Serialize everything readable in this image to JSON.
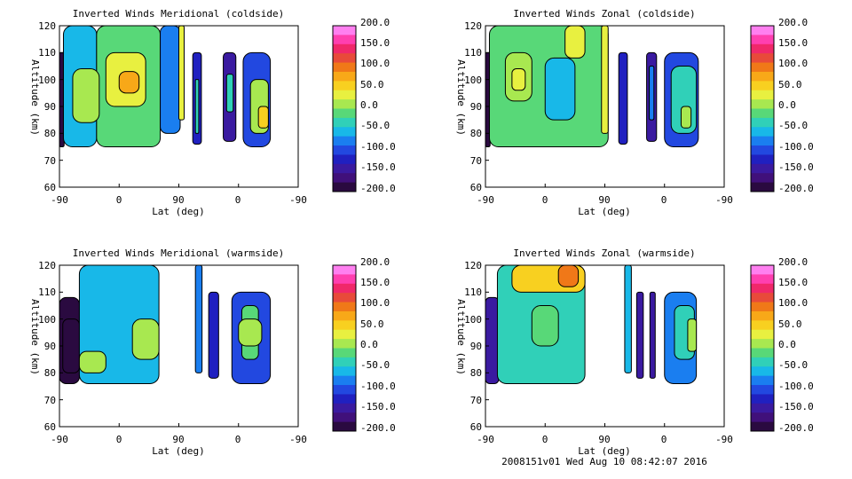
{
  "footer": "2008151v01 Wed Aug 10 08:42:07 2016",
  "colorbar": {
    "ticks": [
      "200.0",
      "150.0",
      "100.0",
      "50.0",
      "0.0",
      "-50.0",
      "-100.0",
      "-150.0",
      "-200.0"
    ],
    "colors_top_to_bottom": [
      "#ff7ff0",
      "#ff3fb0",
      "#f0286a",
      "#e84a3a",
      "#f07818",
      "#f8a818",
      "#f8d020",
      "#e8f040",
      "#a8e850",
      "#58d878",
      "#30d0b8",
      "#18b8e8",
      "#1a7ef0",
      "#2248e0",
      "#2020c0",
      "#3a1aa0",
      "#40107a",
      "#2a0a40"
    ]
  },
  "chart_data": [
    {
      "type": "heatmap",
      "title": "Inverted Winds Meridional (coldside)",
      "xlabel": "Lat (deg)",
      "ylabel": "Altitude (km)",
      "xticks": [
        "-90",
        "0",
        "90",
        "0",
        "-90"
      ],
      "yticks": [
        "60",
        "70",
        "80",
        "90",
        "100",
        "110",
        "120"
      ],
      "ylim": [
        60,
        120
      ],
      "zlim": [
        -200,
        200
      ],
      "regions": [
        {
          "x": [
            -92,
            -83
          ],
          "y": [
            75,
            110
          ],
          "v": -200
        },
        {
          "x": [
            -84,
            -34
          ],
          "y": [
            75,
            120
          ],
          "v": -60
        },
        {
          "x": [
            -34,
            62
          ],
          "y": [
            75,
            120
          ],
          "v": -10
        },
        {
          "x": [
            -70,
            -30
          ],
          "y": [
            84,
            104
          ],
          "v": 20
        },
        {
          "x": [
            -20,
            40
          ],
          "y": [
            90,
            110
          ],
          "v": 40
        },
        {
          "x": [
            0,
            30
          ],
          "y": [
            95,
            103
          ],
          "v": 70
        },
        {
          "x": [
            62,
            92
          ],
          "y": [
            80,
            120
          ],
          "v": -70
        },
        {
          "x": [
            90,
            98
          ],
          "y": [
            85,
            120
          ],
          "v": 40
        },
        {
          "x": [
            111,
            124
          ],
          "y": [
            76,
            110
          ],
          "v": -120
        },
        {
          "x": [
            115,
            120
          ],
          "y": [
            80,
            100
          ],
          "v": -40
        },
        {
          "x": [
            157,
            176
          ],
          "y": [
            77,
            110
          ],
          "v": -140
        },
        {
          "x": [
            162,
            172
          ],
          "y": [
            88,
            102
          ],
          "v": -40
        },
        {
          "x": [
            187,
            228
          ],
          "y": [
            75,
            110
          ],
          "v": -90
        },
        {
          "x": [
            198,
            225
          ],
          "y": [
            80,
            100
          ],
          "v": 20
        },
        {
          "x": [
            210,
            225
          ],
          "y": [
            82,
            90
          ],
          "v": 50
        }
      ]
    },
    {
      "type": "heatmap",
      "title": "Inverted Winds Zonal (coldside)",
      "xlabel": "Lat (deg)",
      "ylabel": "Altitude (km)",
      "xticks": [
        "-90",
        "0",
        "90",
        "0",
        "-90"
      ],
      "yticks": [
        "60",
        "70",
        "80",
        "90",
        "100",
        "110",
        "120"
      ],
      "ylim": [
        60,
        120
      ],
      "zlim": [
        -200,
        200
      ],
      "regions": [
        {
          "x": [
            -92,
            -83
          ],
          "y": [
            75,
            110
          ],
          "v": -180
        },
        {
          "x": [
            -84,
            95
          ],
          "y": [
            75,
            120
          ],
          "v": -20
        },
        {
          "x": [
            -60,
            -20
          ],
          "y": [
            92,
            110
          ],
          "v": 10
        },
        {
          "x": [
            -50,
            -30
          ],
          "y": [
            96,
            104
          ],
          "v": 30
        },
        {
          "x": [
            0,
            45
          ],
          "y": [
            85,
            108
          ],
          "v": -50
        },
        {
          "x": [
            30,
            60
          ],
          "y": [
            108,
            120
          ],
          "v": 30
        },
        {
          "x": [
            85,
            95
          ],
          "y": [
            80,
            120
          ],
          "v": 40
        },
        {
          "x": [
            111,
            124
          ],
          "y": [
            76,
            110
          ],
          "v": -120
        },
        {
          "x": [
            153,
            168
          ],
          "y": [
            77,
            110
          ],
          "v": -150
        },
        {
          "x": [
            157,
            164
          ],
          "y": [
            85,
            105
          ],
          "v": -80
        },
        {
          "x": [
            180,
            231
          ],
          "y": [
            75,
            110
          ],
          "v": -90
        },
        {
          "x": [
            190,
            228
          ],
          "y": [
            80,
            105
          ],
          "v": -40
        },
        {
          "x": [
            205,
            220
          ],
          "y": [
            82,
            90
          ],
          "v": 20
        }
      ]
    },
    {
      "type": "heatmap",
      "title": "Inverted Winds Meridional (warmside)",
      "xlabel": "Lat (deg)",
      "ylabel": "Altitude (km)",
      "xticks": [
        "-90",
        "0",
        "90",
        "0",
        "-90"
      ],
      "yticks": [
        "60",
        "70",
        "80",
        "90",
        "100",
        "110",
        "120"
      ],
      "ylim": [
        60,
        120
      ],
      "zlim": [
        -200,
        200
      ],
      "regions": [
        {
          "x": [
            -92,
            -60
          ],
          "y": [
            76,
            108
          ],
          "v": -180
        },
        {
          "x": [
            -85,
            -60
          ],
          "y": [
            80,
            100
          ],
          "v": -200
        },
        {
          "x": [
            -60,
            60
          ],
          "y": [
            76,
            120
          ],
          "v": -50
        },
        {
          "x": [
            -60,
            -20
          ],
          "y": [
            80,
            88
          ],
          "v": 20
        },
        {
          "x": [
            20,
            60
          ],
          "y": [
            85,
            100
          ],
          "v": 10
        },
        {
          "x": [
            115,
            125
          ],
          "y": [
            80,
            120
          ],
          "v": -80
        },
        {
          "x": [
            135,
            150
          ],
          "y": [
            78,
            110
          ],
          "v": -130
        },
        {
          "x": [
            170,
            228
          ],
          "y": [
            76,
            110
          ],
          "v": -100
        },
        {
          "x": [
            185,
            210
          ],
          "y": [
            85,
            105
          ],
          "v": -20
        },
        {
          "x": [
            180,
            215
          ],
          "y": [
            90,
            100
          ],
          "v": 10
        }
      ]
    },
    {
      "type": "heatmap",
      "title": "Inverted Winds Zonal (warmside)",
      "xlabel": "Lat (deg)",
      "ylabel": "Altitude (km)",
      "xticks": [
        "-90",
        "0",
        "90",
        "0",
        "-90"
      ],
      "yticks": [
        "60",
        "70",
        "80",
        "90",
        "100",
        "110",
        "120"
      ],
      "ylim": [
        60,
        120
      ],
      "zlim": [
        -200,
        200
      ],
      "regions": [
        {
          "x": [
            -92,
            -70
          ],
          "y": [
            76,
            108
          ],
          "v": -150
        },
        {
          "x": [
            -72,
            60
          ],
          "y": [
            76,
            120
          ],
          "v": -30
        },
        {
          "x": [
            -50,
            60
          ],
          "y": [
            110,
            120
          ],
          "v": 50
        },
        {
          "x": [
            20,
            50
          ],
          "y": [
            112,
            120
          ],
          "v": 90
        },
        {
          "x": [
            -20,
            20
          ],
          "y": [
            90,
            105
          ],
          "v": -20
        },
        {
          "x": [
            120,
            130
          ],
          "y": [
            80,
            120
          ],
          "v": -60
        },
        {
          "x": [
            138,
            148
          ],
          "y": [
            78,
            110
          ],
          "v": -140
        },
        {
          "x": [
            158,
            166
          ],
          "y": [
            78,
            110
          ],
          "v": -150
        },
        {
          "x": [
            180,
            228
          ],
          "y": [
            76,
            110
          ],
          "v": -80
        },
        {
          "x": [
            195,
            225
          ],
          "y": [
            85,
            105
          ],
          "v": -30
        },
        {
          "x": [
            215,
            228
          ],
          "y": [
            88,
            100
          ],
          "v": 20
        }
      ]
    }
  ]
}
